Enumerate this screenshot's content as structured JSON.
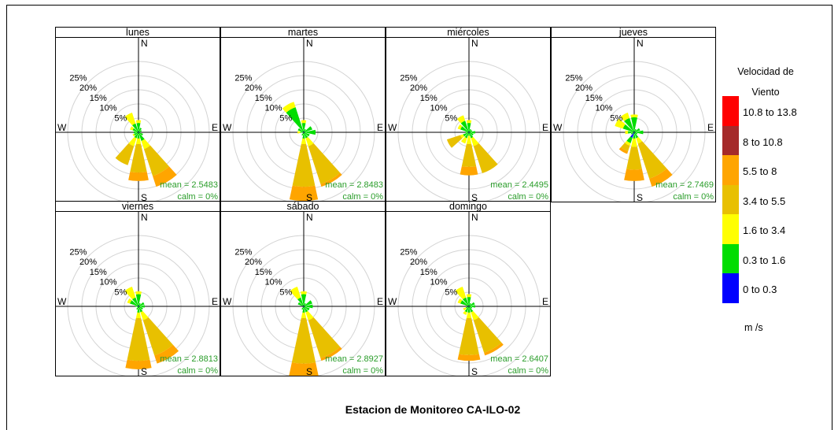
{
  "chart_data": {
    "type": "windrose",
    "title": "Estacion de Monitoreo CA-ILO-02",
    "directions": [
      "N",
      "E",
      "S",
      "W"
    ],
    "radial_labels": [
      "5%",
      "10%",
      "15%",
      "20%",
      "25%"
    ],
    "rings": [
      5,
      10,
      15,
      20,
      25
    ],
    "legend": {
      "title_line1": "Velocidad de",
      "title_line2": "Viento",
      "unit": "m /s",
      "bins": [
        {
          "label": "10.8 to 13.8",
          "color": "#ff0000"
        },
        {
          "label": "8 to 10.8",
          "color": "#a52a2a"
        },
        {
          "label": "5.5 to 8",
          "color": "#ffa500"
        },
        {
          "label": "3.4 to 5.5",
          "color": "#e8c000"
        },
        {
          "label": "1.6 to 3.4",
          "color": "#ffff00"
        },
        {
          "label": "0.3 to 1.6",
          "color": "#00dd00"
        },
        {
          "label": "0 to 0.3",
          "color": "#0000ff"
        }
      ]
    },
    "panels": [
      {
        "name": "lunes",
        "mean": "mean = 2.5483",
        "calm": "calm = 0%",
        "petals": [
          {
            "dir": 0,
            "c": [
              0.3,
              3,
              1,
              0,
              0
            ]
          },
          {
            "dir": 330,
            "c": [
              0.3,
              3,
              4,
              0,
              0
            ]
          },
          {
            "dir": 300,
            "c": [
              0.2,
              2,
              1,
              0,
              0
            ]
          },
          {
            "dir": 270,
            "c": [
              0.2,
              1.5,
              0,
              0,
              0
            ]
          },
          {
            "dir": 240,
            "c": [
              0.2,
              1.5,
              0.5,
              0,
              0
            ]
          },
          {
            "dir": 60,
            "c": [
              0.2,
              1,
              0,
              0,
              0
            ]
          },
          {
            "dir": 90,
            "c": [
              0.2,
              0.5,
              0,
              0,
              0
            ]
          },
          {
            "dir": 120,
            "c": [
              0.2,
              1.5,
              0,
              0,
              0
            ]
          },
          {
            "dir": 150,
            "c": [
              0.2,
              3,
              3,
              10,
              4
            ]
          },
          {
            "dir": 180,
            "c": [
              0.2,
              2,
              2,
              10,
              3
            ]
          },
          {
            "dir": 210,
            "c": [
              0.2,
              2,
              3,
              7,
              0
            ]
          },
          {
            "dir": 30,
            "c": [
              0.2,
              1.5,
              0,
              0,
              0
            ]
          }
        ]
      },
      {
        "name": "martes",
        "mean": "mean = 2.8483",
        "calm": "calm = 0%",
        "petals": [
          {
            "dir": 0,
            "c": [
              0.3,
              3,
              1,
              0,
              0
            ]
          },
          {
            "dir": 330,
            "c": [
              0.3,
              9,
              2,
              0,
              0
            ]
          },
          {
            "dir": 300,
            "c": [
              0.2,
              2,
              0,
              0,
              0
            ]
          },
          {
            "dir": 270,
            "c": [
              0.2,
              1,
              1,
              0,
              0
            ]
          },
          {
            "dir": 60,
            "c": [
              0.2,
              3,
              0,
              0,
              0
            ]
          },
          {
            "dir": 90,
            "c": [
              0.2,
              4,
              0,
              0,
              0
            ]
          },
          {
            "dir": 120,
            "c": [
              0.2,
              2,
              0,
              0,
              0
            ]
          },
          {
            "dir": 150,
            "c": [
              0.2,
              2,
              3,
              14,
              1
            ]
          },
          {
            "dir": 180,
            "c": [
              0.2,
              2,
              2,
              15,
              5
            ]
          },
          {
            "dir": 210,
            "c": [
              0.2,
              1,
              0,
              0,
              0
            ]
          },
          {
            "dir": 30,
            "c": [
              0.2,
              1,
              0,
              0,
              0
            ]
          }
        ]
      },
      {
        "name": "miércoles",
        "mean": "mean = 2.4495",
        "calm": "calm = 0%",
        "petals": [
          {
            "dir": 0,
            "c": [
              0.3,
              3,
              1,
              0,
              0
            ]
          },
          {
            "dir": 330,
            "c": [
              0.3,
              4,
              2,
              0,
              0
            ]
          },
          {
            "dir": 300,
            "c": [
              0.2,
              3,
              1,
              0,
              0
            ]
          },
          {
            "dir": 270,
            "c": [
              0.2,
              1,
              0,
              0,
              0
            ]
          },
          {
            "dir": 240,
            "c": [
              0.2,
              2,
              1,
              5,
              0
            ]
          },
          {
            "dir": 210,
            "c": [
              0.2,
              2,
              2,
              0,
              0
            ]
          },
          {
            "dir": 180,
            "c": [
              0.2,
              1,
              3,
              8,
              3
            ]
          },
          {
            "dir": 150,
            "c": [
              0.2,
              2,
              3,
              10,
              0
            ]
          },
          {
            "dir": 120,
            "c": [
              0.2,
              1.5,
              0,
              0,
              0
            ]
          },
          {
            "dir": 90,
            "c": [
              0.2,
              2,
              0,
              0,
              0
            ]
          },
          {
            "dir": 60,
            "c": [
              0.2,
              1,
              0,
              0,
              0
            ]
          },
          {
            "dir": 30,
            "c": [
              0.2,
              1,
              0,
              0,
              0
            ]
          }
        ]
      },
      {
        "name": "jueves",
        "mean": "mean = 2.7469",
        "calm": "calm = 0%",
        "petals": [
          {
            "dir": 0,
            "c": [
              0.3,
              5,
              1,
              0,
              0
            ]
          },
          {
            "dir": 330,
            "c": [
              0.3,
              5,
              2,
              0,
              0
            ]
          },
          {
            "dir": 300,
            "c": [
              0.2,
              4,
              3,
              0,
              0
            ]
          },
          {
            "dir": 270,
            "c": [
              0.2,
              2,
              1,
              0,
              0
            ]
          },
          {
            "dir": 240,
            "c": [
              0.2,
              1,
              0,
              0,
              0
            ]
          },
          {
            "dir": 210,
            "c": [
              2,
              2,
              1,
              2,
              1
            ]
          },
          {
            "dir": 180,
            "c": [
              0.2,
              2,
              3,
              8,
              4
            ]
          },
          {
            "dir": 150,
            "c": [
              0.2,
              2,
              2,
              13,
              3
            ]
          },
          {
            "dir": 120,
            "c": [
              0.2,
              1,
              0,
              0,
              0
            ]
          },
          {
            "dir": 90,
            "c": [
              0.2,
              3,
              0,
              0,
              0
            ]
          },
          {
            "dir": 60,
            "c": [
              0.2,
              2,
              0,
              0,
              0
            ]
          },
          {
            "dir": 30,
            "c": [
              0.2,
              1,
              0,
              0,
              0
            ]
          }
        ]
      },
      {
        "name": "viernes",
        "mean": "mean = 2.8813",
        "calm": "calm = 0%",
        "petals": [
          {
            "dir": 0,
            "c": [
              0.3,
              4,
              1,
              0,
              0
            ]
          },
          {
            "dir": 330,
            "c": [
              0.3,
              3,
              4,
              0,
              0
            ]
          },
          {
            "dir": 300,
            "c": [
              0.2,
              3,
              1,
              0,
              0
            ]
          },
          {
            "dir": 270,
            "c": [
              0.2,
              1,
              0,
              0,
              0
            ]
          },
          {
            "dir": 60,
            "c": [
              0.2,
              2,
              0,
              0,
              0
            ]
          },
          {
            "dir": 90,
            "c": [
              0.2,
              2,
              0,
              0,
              0
            ]
          },
          {
            "dir": 120,
            "c": [
              0.2,
              1.5,
              0,
              0,
              0
            ]
          },
          {
            "dir": 150,
            "c": [
              0.2,
              2,
              3,
              13,
              3
            ]
          },
          {
            "dir": 180,
            "c": [
              0.2,
              2,
              2,
              15,
              3
            ]
          },
          {
            "dir": 210,
            "c": [
              0.2,
              1,
              0,
              0,
              0
            ]
          },
          {
            "dir": 30,
            "c": [
              0.2,
              1,
              0,
              0,
              0
            ]
          }
        ]
      },
      {
        "name": "sábado",
        "mean": "mean = 2.8927",
        "calm": "calm = 0%",
        "petals": [
          {
            "dir": 0,
            "c": [
              0.3,
              4,
              1,
              0,
              0
            ]
          },
          {
            "dir": 330,
            "c": [
              0.3,
              3,
              4,
              0,
              0
            ]
          },
          {
            "dir": 300,
            "c": [
              0.2,
              2,
              0,
              0,
              0
            ]
          },
          {
            "dir": 60,
            "c": [
              0.2,
              3,
              0,
              0,
              0
            ]
          },
          {
            "dir": 90,
            "c": [
              0.2,
              3,
              0,
              0,
              0
            ]
          },
          {
            "dir": 120,
            "c": [
              0.2,
              2,
              0,
              0,
              0
            ]
          },
          {
            "dir": 150,
            "c": [
              0.2,
              2,
              3,
              14,
              1
            ]
          },
          {
            "dir": 180,
            "c": [
              0.2,
              2,
              2,
              16,
              5
            ]
          },
          {
            "dir": 210,
            "c": [
              0.2,
              1,
              0,
              0,
              0
            ]
          },
          {
            "dir": 30,
            "c": [
              0.2,
              1,
              0,
              0,
              0
            ]
          }
        ]
      },
      {
        "name": "domingo",
        "mean": "mean = 2.6407",
        "calm": "calm = 0%",
        "petals": [
          {
            "dir": 0,
            "c": [
              0.3,
              3,
              1,
              0,
              0
            ]
          },
          {
            "dir": 330,
            "c": [
              0.3,
              3,
              4,
              0,
              0
            ]
          },
          {
            "dir": 300,
            "c": [
              0.2,
              3,
              1,
              0,
              0
            ]
          },
          {
            "dir": 240,
            "c": [
              0.2,
              1,
              1,
              0,
              0
            ]
          },
          {
            "dir": 60,
            "c": [
              0.2,
              2,
              0,
              0,
              0
            ]
          },
          {
            "dir": 90,
            "c": [
              0.2,
              2,
              0,
              0,
              0
            ]
          },
          {
            "dir": 120,
            "c": [
              0.2,
              1,
              0,
              0,
              0
            ]
          },
          {
            "dir": 150,
            "c": [
              0.2,
              2,
              3,
              12,
              1
            ]
          },
          {
            "dir": 180,
            "c": [
              0.2,
              2,
              2,
              13,
              2
            ]
          },
          {
            "dir": 210,
            "c": [
              0.2,
              2,
              1,
              0,
              0
            ]
          },
          {
            "dir": 30,
            "c": [
              0.2,
              1,
              0,
              0,
              0
            ]
          }
        ]
      }
    ]
  }
}
